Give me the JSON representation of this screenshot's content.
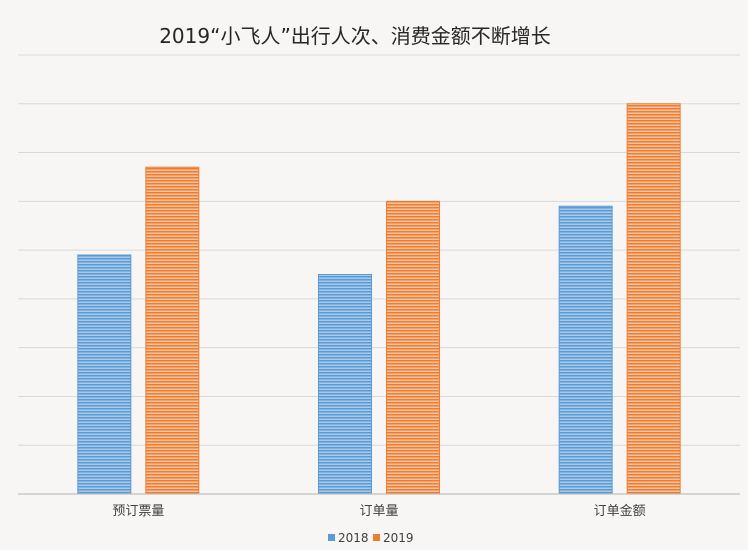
{
  "chart_data": {
    "type": "bar",
    "title": "2019“小飞人”出行人次、消费金额不断增长",
    "categories": [
      "预订票量",
      "订单量",
      "订单金额"
    ],
    "series": [
      {
        "name": "2018",
        "color": "#5b9bd5",
        "values": [
          4.9,
          4.5,
          5.9
        ]
      },
      {
        "name": "2019",
        "color": "#ed7d31",
        "values": [
          6.7,
          6.0,
          8.0
        ]
      }
    ],
    "ylim": [
      0,
      9
    ],
    "grid": true,
    "legend": "bottom",
    "xlabel": "",
    "ylabel": ""
  }
}
